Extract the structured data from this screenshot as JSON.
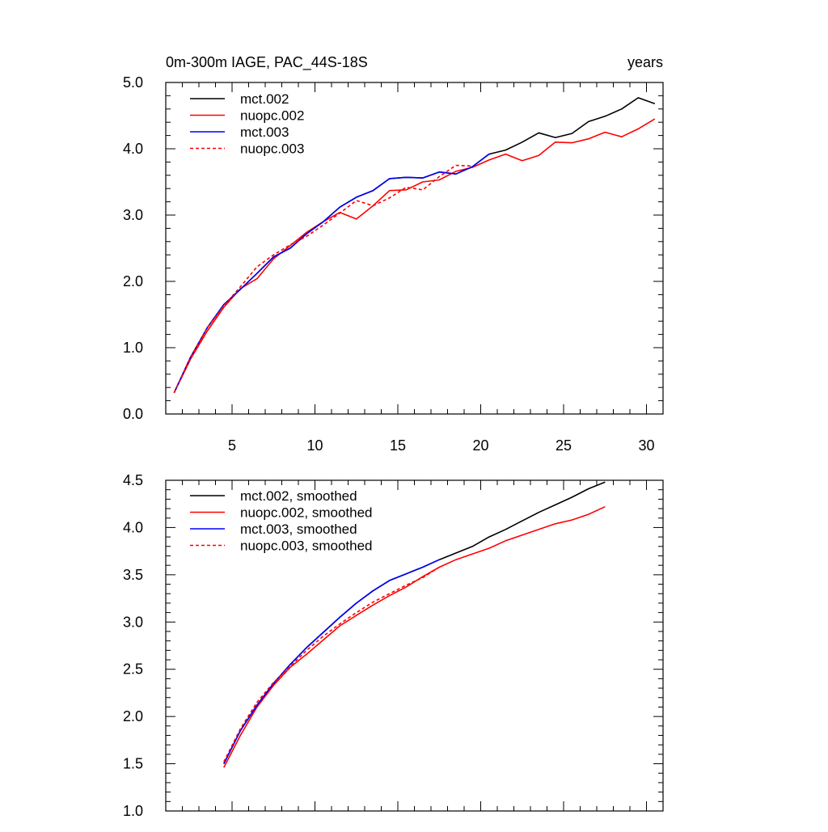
{
  "chart_data": [
    {
      "type": "line",
      "title": "0m-300m IAGE, PAC_44S-18S",
      "units_label": "years",
      "xlabel": "",
      "ylabel": "",
      "xlim": [
        1,
        31
      ],
      "ylim": [
        0.0,
        5.0
      ],
      "x_ticks": [
        5,
        10,
        15,
        20,
        25,
        30
      ],
      "x_tick_labels": [
        "5",
        "10",
        "15",
        "20",
        "25",
        "30"
      ],
      "y_ticks": [
        0.0,
        1.0,
        2.0,
        3.0,
        4.0,
        5.0
      ],
      "y_tick_labels": [
        "0.0",
        "1.0",
        "2.0",
        "3.0",
        "4.0",
        "5.0"
      ],
      "legend_position": "top-left",
      "series": [
        {
          "name": "mct.002",
          "color": "#000000",
          "dash": "solid",
          "x": [
            1.5,
            2.5,
            3.5,
            4.5,
            5.5,
            6.5,
            7.5,
            8.5,
            9.5,
            10.5,
            11.5,
            12.5,
            13.5,
            14.5,
            15.5,
            16.5,
            17.5,
            18.5,
            19.5,
            20.5,
            21.5,
            22.5,
            23.5,
            24.5,
            25.5,
            26.5,
            27.5,
            28.5,
            29.5,
            30.5
          ],
          "values": [
            0.32,
            0.86,
            1.3,
            1.65,
            1.88,
            2.12,
            2.37,
            2.5,
            2.72,
            2.9,
            3.12,
            3.27,
            3.37,
            3.55,
            3.57,
            3.56,
            3.65,
            3.62,
            3.73,
            3.92,
            3.98,
            4.1,
            4.24,
            4.17,
            4.23,
            4.41,
            4.49,
            4.6,
            4.77,
            4.68
          ]
        },
        {
          "name": "nuopc.002",
          "color": "#ff0000",
          "dash": "solid",
          "x": [
            1.5,
            2.5,
            3.5,
            4.5,
            5.5,
            6.5,
            7.5,
            8.5,
            9.5,
            10.5,
            11.5,
            12.5,
            13.5,
            14.5,
            15.5,
            16.5,
            17.5,
            18.5,
            19.5,
            20.5,
            21.5,
            22.5,
            23.5,
            24.5,
            25.5,
            26.5,
            27.5,
            28.5,
            29.5,
            30.5
          ],
          "values": [
            0.32,
            0.83,
            1.25,
            1.61,
            1.89,
            2.04,
            2.34,
            2.54,
            2.74,
            2.9,
            3.04,
            2.94,
            3.14,
            3.37,
            3.38,
            3.5,
            3.53,
            3.66,
            3.72,
            3.83,
            3.92,
            3.82,
            3.9,
            4.1,
            4.09,
            4.15,
            4.25,
            4.18,
            4.3,
            4.45
          ]
        },
        {
          "name": "mct.003",
          "color": "#0000ff",
          "dash": "solid",
          "x": [
            1.5,
            2.5,
            3.5,
            4.5,
            5.5,
            6.5,
            7.5,
            8.5,
            9.5,
            10.5,
            11.5,
            12.5,
            13.5,
            14.5,
            15.5,
            16.5,
            17.5,
            18.5,
            19.5,
            20.5
          ],
          "values": [
            0.32,
            0.86,
            1.3,
            1.65,
            1.88,
            2.12,
            2.37,
            2.5,
            2.72,
            2.9,
            3.12,
            3.27,
            3.37,
            3.55,
            3.57,
            3.56,
            3.65,
            3.62,
            3.73,
            3.92
          ]
        },
        {
          "name": "nuopc.003",
          "color": "#ff0000",
          "dash": "dashed",
          "x": [
            1.5,
            2.5,
            3.5,
            4.5,
            5.5,
            6.5,
            7.5,
            8.5,
            9.5,
            10.5,
            11.5,
            12.5,
            13.5,
            14.5,
            15.5,
            16.5,
            17.5,
            18.5,
            19.5
          ],
          "values": [
            0.32,
            0.86,
            1.3,
            1.63,
            1.92,
            2.22,
            2.4,
            2.55,
            2.68,
            2.85,
            3.03,
            3.22,
            3.14,
            3.26,
            3.42,
            3.38,
            3.58,
            3.75,
            3.74
          ]
        }
      ]
    },
    {
      "type": "line",
      "title": "",
      "xlabel": "",
      "ylabel": "",
      "xlim": [
        1,
        31
      ],
      "ylim": [
        1.0,
        4.5
      ],
      "x_ticks": [
        5,
        10,
        15,
        20,
        25,
        30
      ],
      "y_ticks": [
        1.0,
        1.5,
        2.0,
        2.5,
        3.0,
        3.5,
        4.0,
        4.5
      ],
      "y_tick_labels": [
        "1.0",
        "1.5",
        "2.0",
        "2.5",
        "3.0",
        "3.5",
        "4.0",
        "4.5"
      ],
      "legend_position": "top-left",
      "series": [
        {
          "name": "mct.002, smoothed",
          "color": "#000000",
          "dash": "solid",
          "x": [
            4.5,
            5.5,
            6.5,
            7.5,
            8.5,
            9.5,
            10.5,
            11.5,
            12.5,
            13.5,
            14.5,
            15.5,
            16.5,
            17.5,
            18.5,
            19.5,
            20.5,
            21.5,
            22.5,
            23.5,
            24.5,
            25.5,
            26.5,
            27.5
          ],
          "values": [
            1.5,
            1.85,
            2.12,
            2.35,
            2.55,
            2.73,
            2.89,
            3.05,
            3.2,
            3.33,
            3.44,
            3.51,
            3.58,
            3.66,
            3.73,
            3.8,
            3.9,
            3.98,
            4.07,
            4.16,
            4.24,
            4.32,
            4.41,
            4.48
          ]
        },
        {
          "name": "nuopc.002, smoothed",
          "color": "#ff0000",
          "dash": "solid",
          "x": [
            4.5,
            5.5,
            6.5,
            7.5,
            8.5,
            9.5,
            10.5,
            11.5,
            12.5,
            13.5,
            14.5,
            15.5,
            16.5,
            17.5,
            18.5,
            19.5,
            20.5,
            21.5,
            22.5,
            23.5,
            24.5,
            25.5,
            26.5,
            27.5
          ],
          "values": [
            1.46,
            1.8,
            2.1,
            2.33,
            2.52,
            2.66,
            2.81,
            2.96,
            3.07,
            3.18,
            3.28,
            3.37,
            3.48,
            3.58,
            3.66,
            3.72,
            3.78,
            3.86,
            3.92,
            3.98,
            4.04,
            4.08,
            4.14,
            4.22
          ]
        },
        {
          "name": "mct.003, smoothed",
          "color": "#0000ff",
          "dash": "solid",
          "x": [
            4.5,
            5.5,
            6.5,
            7.5,
            8.5,
            9.5,
            10.5,
            11.5,
            12.5,
            13.5,
            14.5,
            15.5,
            16.5,
            17.5
          ],
          "values": [
            1.5,
            1.85,
            2.12,
            2.35,
            2.55,
            2.73,
            2.89,
            3.05,
            3.2,
            3.33,
            3.44,
            3.51,
            3.58,
            3.66
          ]
        },
        {
          "name": "nuopc.003, smoothed",
          "color": "#ff0000",
          "dash": "dashed",
          "x": [
            4.5,
            5.5,
            6.5,
            7.5,
            8.5,
            9.5,
            10.5,
            11.5,
            12.5,
            13.5,
            14.5,
            15.5,
            16.5,
            17.5
          ],
          "values": [
            1.52,
            1.87,
            2.15,
            2.36,
            2.53,
            2.7,
            2.85,
            2.98,
            3.1,
            3.21,
            3.3,
            3.39,
            3.47,
            3.58
          ]
        }
      ]
    }
  ]
}
